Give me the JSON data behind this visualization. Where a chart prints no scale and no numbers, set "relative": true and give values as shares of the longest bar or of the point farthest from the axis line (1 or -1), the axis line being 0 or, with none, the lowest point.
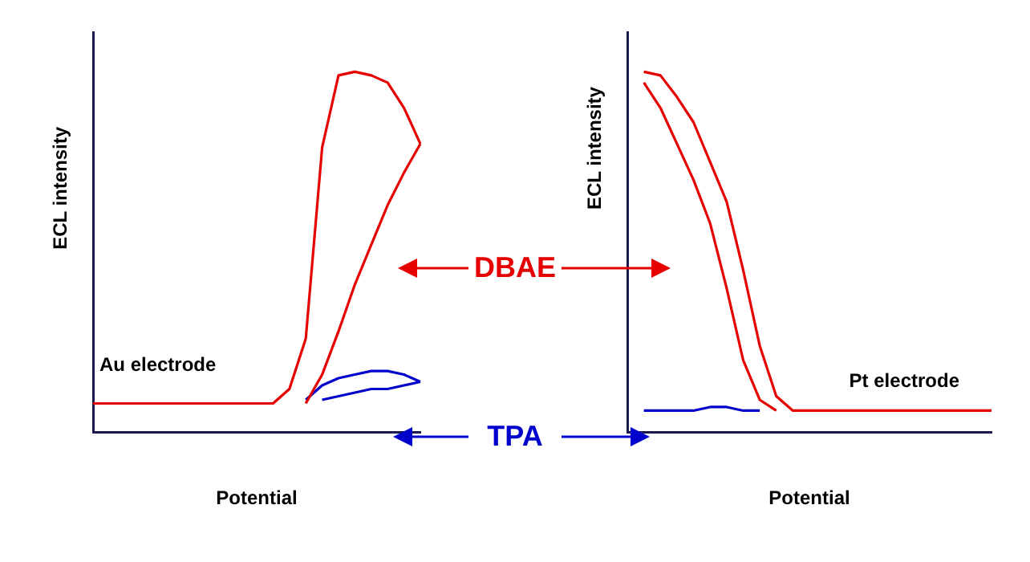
{
  "chart_data": [
    {
      "type": "line",
      "relative": true,
      "xlabel": "Potential",
      "ylabel": "ECL intensity",
      "annotations": [
        "Au electrode"
      ],
      "legend": "right",
      "categories": [
        null,
        null,
        null,
        null,
        null,
        null,
        null,
        null,
        null,
        null,
        null,
        null,
        null,
        null,
        null,
        null,
        null,
        null,
        null,
        null,
        null
      ],
      "series": [
        {
          "name": "DBAE",
          "color": "#e60000",
          "values": [
            0.08,
            0.08,
            0.08,
            0.08,
            0.08,
            0.08,
            0.08,
            0.08,
            0.08,
            0.08,
            0.08,
            0.08,
            0.12,
            0.26,
            0.79,
            0.99,
            1.0,
            0.99,
            0.97,
            0.9,
            0.8
          ]
        },
        {
          "color": "#e60000",
          "values": [
            null,
            null,
            null,
            null,
            null,
            null,
            null,
            null,
            null,
            null,
            null,
            null,
            null,
            0.08,
            0.16,
            0.28,
            0.41,
            0.52,
            0.63,
            0.72,
            0.8
          ]
        },
        {
          "name": "TPA",
          "color": "#0000cc",
          "values": [
            null,
            null,
            null,
            null,
            null,
            null,
            null,
            null,
            null,
            null,
            null,
            null,
            null,
            0.09,
            0.13,
            0.15,
            0.16,
            0.17,
            0.17,
            0.16,
            0.14
          ]
        },
        {
          "color": "#0000cc",
          "values": [
            null,
            null,
            null,
            null,
            null,
            null,
            null,
            null,
            null,
            null,
            null,
            null,
            null,
            null,
            0.09,
            0.1,
            0.11,
            0.12,
            0.12,
            0.13,
            0.14
          ]
        }
      ]
    },
    {
      "type": "line",
      "relative": true,
      "xlabel": "Potential",
      "ylabel": "ECL intensity",
      "annotations": [
        "Pt electrode"
      ],
      "categories": [
        null,
        null,
        null,
        null,
        null,
        null,
        null,
        null,
        null,
        null,
        null,
        null,
        null,
        null,
        null,
        null,
        null,
        null,
        null,
        null,
        null,
        null,
        null
      ],
      "series": [
        {
          "color": "#e60000",
          "values": [
            null,
            1.0,
            0.99,
            0.93,
            0.86,
            0.75,
            0.64,
            0.45,
            0.24,
            0.1,
            0.06,
            0.06,
            0.06,
            0.06,
            0.06,
            0.06,
            0.06,
            0.06,
            0.06,
            0.06,
            0.06,
            0.06,
            0.06
          ]
        },
        {
          "color": "#e60000",
          "values": [
            null,
            0.97,
            0.9,
            0.8,
            0.7,
            0.58,
            0.4,
            0.2,
            0.09,
            0.06,
            null,
            null,
            null,
            null,
            null,
            null,
            null,
            null,
            null,
            null,
            null,
            null,
            null
          ]
        },
        {
          "color": "#0000cc",
          "values": [
            null,
            0.06,
            0.06,
            0.06,
            0.06,
            0.07,
            0.07,
            0.06,
            0.06,
            null,
            null,
            null,
            null,
            null,
            null,
            null,
            null,
            null,
            null,
            null,
            null,
            null,
            null
          ]
        }
      ]
    }
  ]
}
